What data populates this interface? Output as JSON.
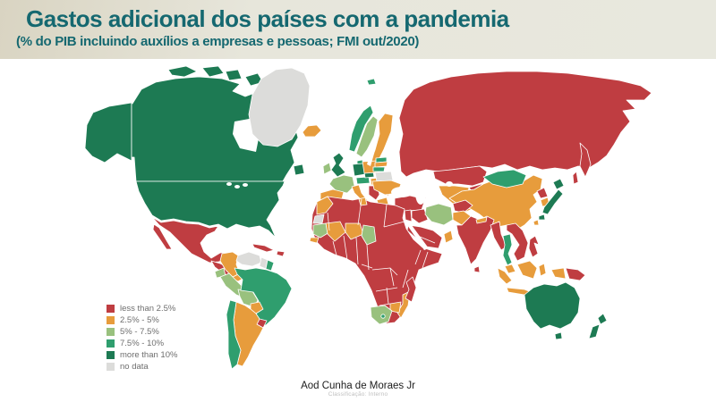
{
  "slide": {
    "title": "Gastos adicional dos países com a pandemia",
    "subtitle": "(% do PIB incluindo auxílios a empresas e pessoas; FMI out/2020)",
    "footer": {
      "author": "Aod Cunha de Moraes Jr",
      "watermark": "Classificação: Interno"
    }
  },
  "theme": {
    "title_color": "#156870",
    "header_gradient_left": "#d9d4c2",
    "header_gradient_right": "#e8e8de",
    "legend_text_color": "#6e6e6e",
    "country_border_color": "#ffffff",
    "ocean_color": "#ffffff"
  },
  "chart_data": {
    "type": "choropleth_map",
    "title": "Gastos adicional dos países com a pandemia",
    "subtitle_note": "(% do PIB incluindo auxílios a empresas e pessoas; FMI out/2020)",
    "unit": "% do PIB",
    "source": "FMI out/2020",
    "legend_position": "bottom-left",
    "classes": [
      {
        "key": "lt25",
        "label": "less than 2.5%",
        "color": "#bf3d41"
      },
      {
        "key": "c25_5",
        "label": "2.5% - 5%",
        "color": "#e79c3c"
      },
      {
        "key": "c5_75",
        "label": "5% - 7.5%",
        "color": "#99c17e"
      },
      {
        "key": "c75_10",
        "label": "7.5% - 10%",
        "color": "#2f9e6e"
      },
      {
        "key": "gt10",
        "label": "more than 10%",
        "color": "#1d7a53"
      },
      {
        "key": "nodata",
        "label": "no data",
        "color": "#dcdcda"
      }
    ],
    "regions": {
      "canada": "gt10",
      "usa": "gt10",
      "greenland": "nodata",
      "iceland": "c25_5",
      "svalbard": "c75_10",
      "mexico": "lt25",
      "central-america": "lt25",
      "panama": "c25_5",
      "cuba": "lt25",
      "hispaniola": "lt25",
      "colombia": "c25_5",
      "venezuela": "nodata",
      "guyana": "nodata",
      "suriname-guiana": "c75_10",
      "ecuador": "c5_75",
      "peru": "c5_75",
      "bolivia": "c5_75",
      "brazil": "c75_10",
      "paraguay": "c25_5",
      "uruguay": "lt25",
      "argentina": "c25_5",
      "chile": "c75_10",
      "norway": "c75_10",
      "sweden": "c5_75",
      "finland": "c25_5",
      "denmark": "c75_10",
      "uk": "gt10",
      "ireland": "c5_75",
      "germany": "gt10",
      "france": "c5_75",
      "iberia": "c25_5",
      "switzerland-austria": "c75_10",
      "czechia": "gt10",
      "poland": "c25_5",
      "italy": "c25_5",
      "hungary": "c25_5",
      "romania-bulgaria": "c25_5",
      "balkans": "lt25",
      "greece": "c25_5",
      "estonia": "c75_10",
      "latvia": "c25_5",
      "lithuania": "c75_10",
      "belarus": "nodata",
      "ukraine": "c25_5",
      "turkey": "lt25",
      "caucasus": "lt25",
      "russia": "lt25",
      "kazakhstan": "lt25",
      "central-asia": "c25_5",
      "kyrgyz-tajik": "lt25",
      "mongolia": "c75_10",
      "china": "c25_5",
      "taiwan": "c25_5",
      "north-korea": "lt25",
      "south-korea": "c25_5",
      "japan": "gt10",
      "levant": "lt25",
      "iraq": "lt25",
      "iran": "c5_75",
      "saudi-arabia": "lt25",
      "oman": "c25_5",
      "afghanistan": "lt25",
      "pakistan": "c25_5",
      "india": "lt25",
      "nepal": "c25_5",
      "sri-lanka": "lt25",
      "myanmar": "lt25",
      "thailand": "c75_10",
      "indochina": "lt25",
      "malaysia": "c25_5",
      "indonesia": "c25_5",
      "philippines": "lt25",
      "papua-new-guinea": "lt25",
      "australia": "gt10",
      "new-zealand": "gt10",
      "africa-other": "lt25",
      "morocco": "c25_5",
      "western-sahara": "nodata",
      "tunisia": "c25_5",
      "mauritania": "c5_75",
      "senegal": "c25_5",
      "mali": "c25_5",
      "niger": "c25_5",
      "chad": "c5_75",
      "mozambique": "c25_5",
      "zimbabwe": "c25_5",
      "south-africa": "c5_75",
      "lesotho": "c75_10",
      "madagascar": "lt25"
    }
  }
}
